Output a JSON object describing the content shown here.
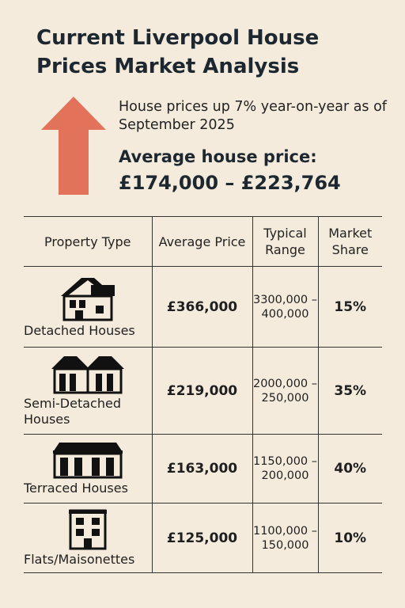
{
  "header": {
    "title": "Current Liverpool House Prices Market Analysis",
    "subtitle": "House prices up 7% year-on-year as of September 2025",
    "avg_label": "Average house price:",
    "avg_value": "£174,000 – £223,764",
    "arrow_icon": "up-arrow-icon",
    "arrow_color": "#e2735a"
  },
  "table": {
    "headers": [
      "Property Type",
      "Average Price",
      "Typical Range",
      "Market Share"
    ],
    "rows": [
      {
        "type": "Detached Houses",
        "icon": "detached-house-icon",
        "price": "£366,000",
        "range": "3300,000 –400,000",
        "share": "15%"
      },
      {
        "type": "Semi-Detached Houses",
        "icon": "semi-detached-house-icon",
        "price": "£219,000",
        "range": "2000,000 –250,000",
        "share": "35%"
      },
      {
        "type": "Terraced Houses",
        "icon": "terraced-houses-icon",
        "price": "£163,000",
        "range": "1150,000 –200,000",
        "share": "40%"
      },
      {
        "type": "Flats/Maisonettes",
        "icon": "flats-building-icon",
        "price": "£125,000",
        "range": "1100,000 –150,000",
        "share": "10%"
      }
    ]
  }
}
